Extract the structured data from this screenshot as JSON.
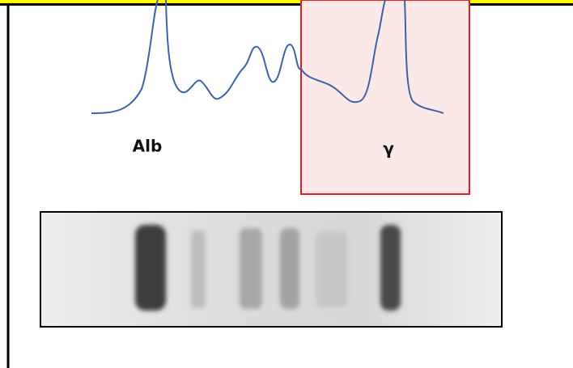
{
  "labels": {
    "albumin": "Alb",
    "gamma": "γ"
  }
}
